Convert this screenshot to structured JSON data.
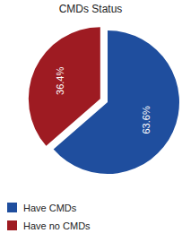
{
  "chart_data": {
    "type": "pie",
    "title": "CMDs Status",
    "categories": [
      "Have CMDs",
      "Have no CMDs"
    ],
    "values": [
      63.6,
      36.4
    ],
    "value_labels": [
      "63.6%",
      "36.4%"
    ],
    "colors": [
      "#1f4e9e",
      "#9e1b22"
    ],
    "data_labels": true,
    "legend": "bottom-left"
  }
}
